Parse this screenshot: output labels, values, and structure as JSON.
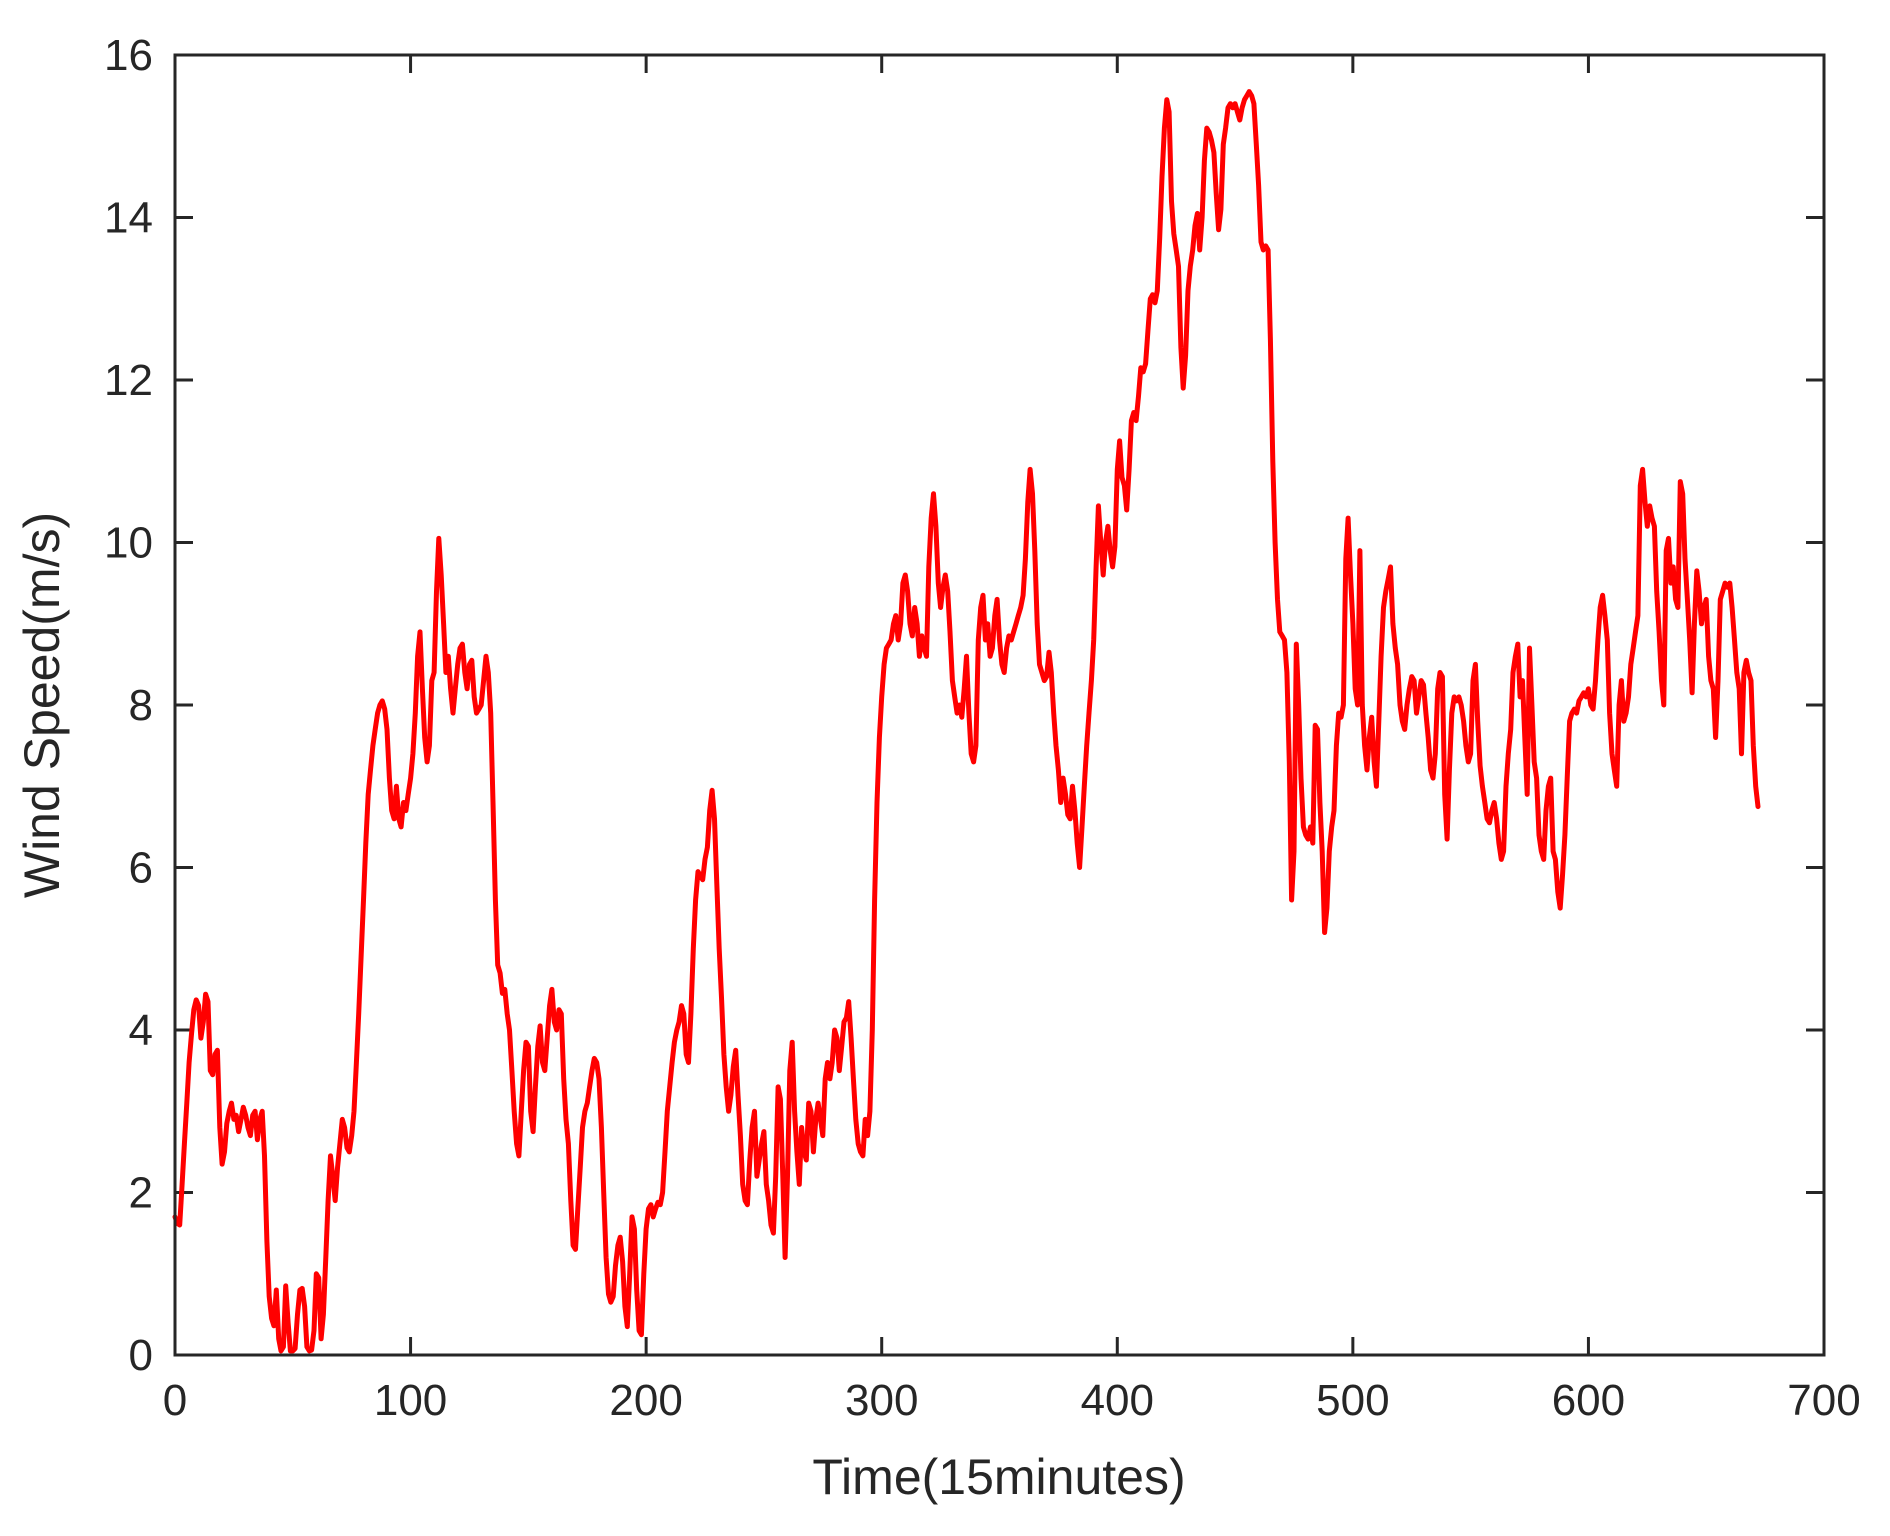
{
  "page": {
    "background": "#FFFFFF",
    "type_of_figure": "matlab-style line plot"
  },
  "chart_data": {
    "type": "line",
    "title": "",
    "xlabel": "Time(15minutes)",
    "ylabel": "Wind Speed(m/s)",
    "xlim": [
      0,
      700
    ],
    "ylim": [
      0,
      16
    ],
    "x_ticks": [
      0,
      100,
      200,
      300,
      400,
      500,
      600,
      700
    ],
    "y_ticks": [
      0,
      2,
      4,
      6,
      8,
      10,
      12,
      14,
      16
    ],
    "grid": false,
    "legend_position": "none",
    "line_color": "#FF0000",
    "line_width": 5,
    "axis_color": "#262626",
    "tick_direction": "in",
    "box": true,
    "x_start": 0,
    "x_step": 1,
    "values": [
      1.7,
      1.62,
      1.6,
      2.1,
      2.6,
      3.1,
      3.6,
      3.95,
      4.25,
      4.37,
      4.3,
      3.9,
      4.1,
      4.44,
      4.35,
      3.5,
      3.45,
      3.7,
      3.75,
      2.8,
      2.35,
      2.5,
      2.85,
      3.0,
      3.1,
      2.9,
      2.95,
      2.75,
      2.9,
      3.05,
      2.95,
      2.8,
      2.7,
      2.95,
      3.0,
      2.65,
      2.9,
      3.0,
      2.45,
      1.4,
      0.72,
      0.45,
      0.36,
      0.8,
      0.2,
      0.05,
      0.1,
      0.85,
      0.4,
      0.05,
      0.05,
      0.08,
      0.5,
      0.8,
      0.82,
      0.6,
      0.1,
      0.05,
      0.06,
      0.3,
      1.0,
      0.95,
      0.2,
      0.5,
      1.2,
      1.9,
      2.45,
      2.2,
      1.9,
      2.3,
      2.6,
      2.9,
      2.8,
      2.55,
      2.5,
      2.7,
      3.0,
      3.6,
      4.2,
      4.9,
      5.6,
      6.3,
      6.9,
      7.2,
      7.5,
      7.7,
      7.9,
      8.0,
      8.05,
      7.95,
      7.7,
      7.1,
      6.7,
      6.6,
      7.0,
      6.6,
      6.5,
      6.8,
      6.7,
      6.9,
      7.1,
      7.4,
      7.9,
      8.6,
      8.9,
      8.2,
      7.6,
      7.3,
      7.5,
      8.3,
      8.4,
      9.4,
      10.05,
      9.6,
      9.0,
      8.4,
      8.6,
      8.2,
      7.9,
      8.2,
      8.5,
      8.7,
      8.75,
      8.4,
      8.2,
      8.5,
      8.55,
      8.1,
      7.9,
      7.95,
      8.0,
      8.3,
      8.6,
      8.4,
      7.9,
      6.8,
      5.6,
      4.8,
      4.7,
      4.45,
      4.5,
      4.2,
      4.0,
      3.5,
      3.0,
      2.6,
      2.45,
      3.0,
      3.5,
      3.85,
      3.8,
      3.0,
      2.75,
      3.3,
      3.8,
      4.05,
      3.6,
      3.5,
      3.9,
      4.3,
      4.5,
      4.1,
      4.0,
      4.25,
      4.2,
      3.4,
      2.9,
      2.6,
      1.9,
      1.35,
      1.3,
      1.8,
      2.3,
      2.8,
      3.0,
      3.1,
      3.3,
      3.5,
      3.65,
      3.6,
      3.4,
      2.8,
      2.0,
      1.2,
      0.75,
      0.65,
      0.72,
      1.1,
      1.35,
      1.45,
      1.15,
      0.6,
      0.35,
      1.0,
      1.7,
      1.55,
      0.8,
      0.3,
      0.25,
      1.0,
      1.55,
      1.8,
      1.85,
      1.7,
      1.8,
      1.88,
      1.85,
      2.0,
      2.5,
      3.0,
      3.3,
      3.6,
      3.85,
      4.0,
      4.1,
      4.3,
      4.2,
      3.7,
      3.6,
      4.2,
      5.0,
      5.6,
      5.95,
      5.9,
      5.85,
      6.1,
      6.25,
      6.7,
      6.95,
      6.6,
      5.8,
      5.0,
      4.4,
      3.7,
      3.3,
      3.0,
      3.2,
      3.55,
      3.75,
      3.2,
      2.7,
      2.1,
      1.9,
      1.85,
      2.4,
      2.8,
      3.0,
      2.2,
      2.4,
      2.6,
      2.75,
      2.1,
      1.9,
      1.6,
      1.5,
      2.2,
      3.3,
      3.15,
      2.2,
      1.2,
      2.2,
      3.5,
      3.85,
      3.0,
      2.5,
      2.1,
      2.8,
      2.5,
      2.4,
      3.1,
      3.0,
      2.5,
      2.9,
      3.1,
      2.9,
      2.7,
      3.4,
      3.6,
      3.4,
      3.6,
      4.0,
      3.9,
      3.5,
      3.8,
      4.1,
      4.15,
      4.35,
      3.9,
      3.4,
      2.9,
      2.6,
      2.5,
      2.45,
      2.9,
      2.7,
      3.0,
      4.0,
      5.6,
      6.8,
      7.6,
      8.1,
      8.5,
      8.7,
      8.75,
      8.8,
      9.0,
      9.1,
      8.8,
      9.0,
      9.5,
      9.6,
      9.4,
      9.0,
      8.85,
      9.2,
      9.0,
      8.6,
      8.85,
      8.7,
      8.6,
      9.7,
      10.3,
      10.6,
      10.2,
      9.5,
      9.2,
      9.45,
      9.6,
      9.4,
      8.9,
      8.3,
      8.1,
      7.9,
      8.0,
      7.85,
      8.2,
      8.6,
      7.9,
      7.4,
      7.3,
      7.5,
      8.8,
      9.2,
      9.35,
      8.8,
      9.0,
      8.6,
      8.7,
      9.1,
      9.3,
      8.8,
      8.5,
      8.4,
      8.7,
      8.85,
      8.8,
      8.9,
      9.0,
      9.1,
      9.2,
      9.35,
      9.8,
      10.5,
      10.9,
      10.6,
      9.9,
      9.0,
      8.5,
      8.4,
      8.3,
      8.35,
      8.65,
      8.4,
      7.9,
      7.5,
      7.2,
      6.8,
      7.1,
      6.9,
      6.65,
      6.6,
      7.0,
      6.7,
      6.3,
      6.0,
      6.5,
      7.0,
      7.5,
      7.9,
      8.3,
      8.8,
      9.7,
      10.45,
      10.0,
      9.6,
      10.0,
      10.2,
      9.9,
      9.7,
      9.95,
      10.9,
      11.25,
      10.8,
      10.7,
      10.4,
      10.9,
      11.5,
      11.6,
      11.5,
      11.8,
      12.15,
      12.1,
      12.2,
      12.6,
      13.0,
      13.05,
      12.95,
      13.1,
      13.75,
      14.5,
      15.1,
      15.45,
      15.3,
      14.2,
      13.8,
      13.6,
      13.4,
      12.4,
      11.9,
      12.3,
      13.1,
      13.4,
      13.6,
      13.9,
      14.05,
      13.6,
      14.0,
      14.7,
      15.1,
      15.05,
      14.95,
      14.8,
      14.3,
      13.85,
      14.1,
      14.9,
      15.1,
      15.35,
      15.4,
      15.35,
      15.4,
      15.3,
      15.2,
      15.35,
      15.45,
      15.5,
      15.55,
      15.5,
      15.4,
      14.9,
      14.4,
      13.7,
      13.6,
      13.65,
      13.6,
      12.5,
      11.0,
      10.0,
      9.3,
      8.9,
      8.85,
      8.8,
      8.4,
      7.3,
      5.6,
      6.2,
      8.75,
      8.0,
      7.1,
      6.5,
      6.4,
      6.35,
      6.5,
      6.3,
      7.75,
      7.7,
      6.8,
      6.2,
      5.2,
      5.5,
      6.2,
      6.5,
      6.7,
      7.5,
      7.9,
      7.85,
      8.0,
      9.8,
      10.3,
      9.6,
      9.0,
      8.2,
      8.0,
      9.9,
      8.0,
      7.5,
      7.2,
      7.6,
      7.85,
      7.3,
      7.0,
      7.8,
      8.6,
      9.2,
      9.4,
      9.55,
      9.7,
      9.0,
      8.7,
      8.5,
      8.0,
      7.8,
      7.7,
      8.0,
      8.2,
      8.35,
      8.3,
      7.9,
      8.1,
      8.3,
      8.25,
      7.9,
      7.6,
      7.2,
      7.1,
      7.4,
      8.2,
      8.4,
      8.35,
      6.9,
      6.35,
      7.2,
      7.9,
      8.1,
      8.05,
      8.1,
      8.0,
      7.8,
      7.5,
      7.3,
      7.4,
      8.3,
      8.5,
      7.8,
      7.25,
      7.0,
      6.8,
      6.6,
      6.55,
      6.7,
      6.8,
      6.6,
      6.3,
      6.1,
      6.2,
      7.0,
      7.4,
      7.7,
      8.4,
      8.6,
      8.75,
      8.1,
      8.3,
      7.6,
      6.9,
      8.7,
      8.0,
      7.3,
      7.1,
      6.4,
      6.2,
      6.1,
      6.7,
      7.0,
      7.1,
      6.2,
      6.1,
      5.7,
      5.5,
      5.9,
      6.4,
      7.1,
      7.8,
      7.9,
      7.95,
      7.9,
      8.05,
      8.1,
      8.15,
      8.1,
      8.2,
      8.0,
      7.95,
      8.3,
      8.8,
      9.2,
      9.35,
      9.1,
      8.8,
      7.9,
      7.4,
      7.2,
      7.0,
      8.0,
      8.3,
      7.8,
      7.9,
      8.1,
      8.5,
      8.7,
      8.9,
      9.1,
      10.7,
      10.9,
      10.5,
      10.2,
      10.45,
      10.3,
      10.2,
      9.4,
      8.9,
      8.3,
      8.0,
      9.9,
      10.05,
      9.5,
      9.7,
      9.3,
      9.2,
      10.75,
      10.6,
      9.8,
      9.3,
      8.8,
      8.15,
      9.0,
      9.65,
      9.4,
      9.0,
      9.2,
      9.3,
      8.6,
      8.3,
      8.2,
      7.6,
      8.3,
      9.3,
      9.4,
      9.5,
      9.45,
      9.5,
      9.2,
      8.8,
      8.4,
      8.2,
      7.4,
      8.4,
      8.55,
      8.4,
      8.3,
      7.5,
      7.0,
      6.75
    ]
  }
}
